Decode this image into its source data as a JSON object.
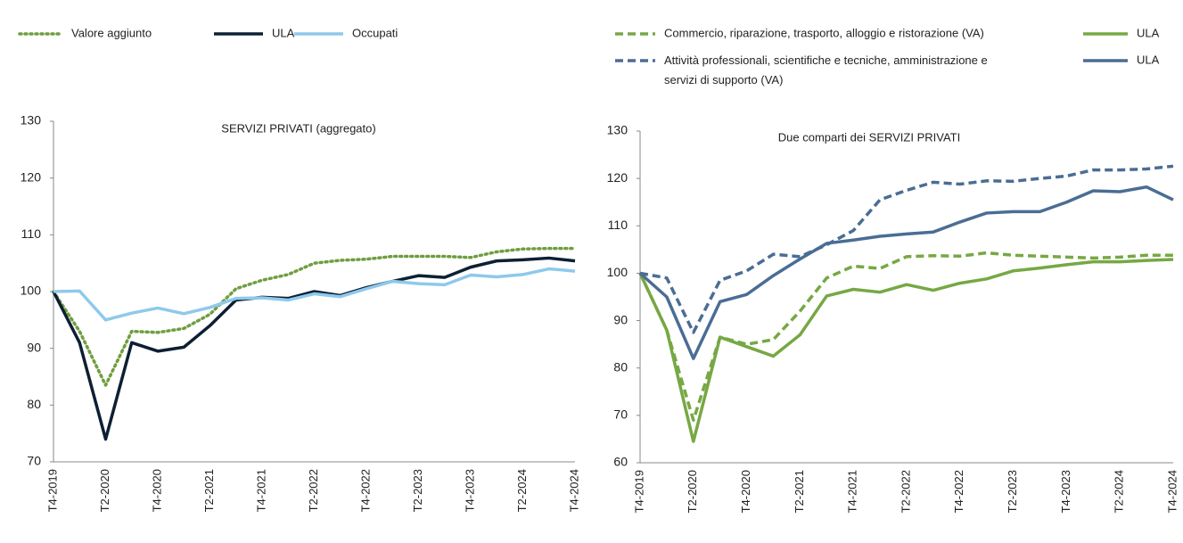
{
  "chart_data": [
    {
      "type": "line",
      "title": "SERVIZI PRIVATI (aggregato)",
      "categories": [
        "T4-2019",
        null,
        "T2-2020",
        null,
        "T4-2020",
        null,
        "T2-2021",
        null,
        "T4-2021",
        null,
        "T2-2022",
        null,
        "T4-2022",
        null,
        "T2-2023",
        null,
        "T4-2023",
        null,
        "T2-2024",
        null,
        "T4-2024"
      ],
      "ylim": [
        70,
        130
      ],
      "yticks": [
        70,
        80,
        90,
        100,
        110,
        120,
        130
      ],
      "series": [
        {
          "name": "Valore aggiunto",
          "color": "#6f9e3f",
          "dash": "dotted",
          "values": [
            100,
            93,
            83.5,
            93,
            92.8,
            93.5,
            96,
            100.5,
            102,
            103,
            105,
            105.5,
            105.7,
            106.2,
            106.2,
            106.2,
            106,
            107,
            107.5,
            107.6,
            107.6
          ]
        },
        {
          "name": "ULA",
          "color": "#0d1f33",
          "dash": "solid",
          "values": [
            100,
            91,
            74,
            91,
            89.5,
            90.2,
            94,
            98.5,
            99,
            98.8,
            100,
            99.3,
            100.7,
            101.8,
            102.8,
            102.5,
            104.3,
            105.4,
            105.6,
            105.9,
            105.4
          ]
        },
        {
          "name": "Occupati",
          "color": "#8ec9ec",
          "dash": "solid",
          "values": [
            100,
            100.1,
            95,
            96.2,
            97.1,
            96.1,
            97.2,
            98.8,
            98.9,
            98.5,
            99.6,
            99.1,
            100.5,
            101.8,
            101.4,
            101.2,
            102.9,
            102.6,
            103,
            104,
            103.6
          ]
        }
      ]
    },
    {
      "type": "line",
      "title": "Due comparti dei SERVIZI PRIVATI",
      "categories": [
        "T4-2019",
        null,
        "T2-2020",
        null,
        "T4-2020",
        null,
        "T2-2021",
        null,
        "T4-2021",
        null,
        "T2-2022",
        null,
        "T4-2022",
        null,
        "T2-2023",
        null,
        "T4-2023",
        null,
        "T2-2024",
        null,
        "T4-2024"
      ],
      "ylim": [
        60,
        130
      ],
      "yticks": [
        60,
        70,
        80,
        90,
        100,
        110,
        120,
        130
      ],
      "series": [
        {
          "name": "Commercio, riparazione, trasporto, alloggio e ristorazione (VA)",
          "color": "#76a844",
          "dash": "dashed",
          "values": [
            100,
            88,
            69,
            86.5,
            85,
            86,
            92,
            99,
            101.5,
            101,
            103.5,
            103.7,
            103.6,
            104.3,
            103.8,
            103.6,
            103.4,
            103.2,
            103.4,
            103.8,
            103.8
          ]
        },
        {
          "name": "ULA",
          "color": "#76a844",
          "dash": "solid",
          "values": [
            100,
            88,
            64.5,
            86.5,
            84.5,
            82.5,
            87,
            95.2,
            96.6,
            96,
            97.6,
            96.4,
            97.9,
            98.8,
            100.5,
            101.1,
            101.8,
            102.4,
            102.4,
            102.7,
            102.9
          ]
        },
        {
          "name": "Attività professionali, scientifiche e tecniche, amministrazione e servizi di supporto (VA)",
          "color": "#4a6d94",
          "dash": "dashed",
          "values": [
            100,
            99,
            87.5,
            98.5,
            100.5,
            104,
            103.5,
            106,
            109,
            115.5,
            117.5,
            119.2,
            118.8,
            119.5,
            119.4,
            120,
            120.5,
            121.8,
            121.8,
            122,
            122.6
          ]
        },
        {
          "name": "ULA",
          "color": "#4a6d94",
          "dash": "solid",
          "values": [
            100,
            95,
            82,
            94,
            95.5,
            99.5,
            103,
            106.3,
            107,
            107.8,
            108.3,
            108.7,
            110.8,
            112.7,
            113,
            113,
            115,
            117.4,
            117.2,
            118.2,
            115.5
          ]
        }
      ]
    }
  ]
}
